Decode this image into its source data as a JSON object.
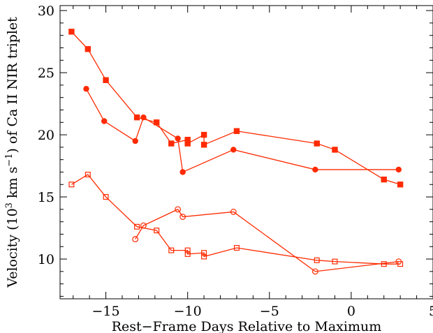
{
  "chart_data": {
    "type": "scatter",
    "xlabel": "Rest−Frame Days Relative to Maximum",
    "ylabel": {
      "prefix": "Velocity (10",
      "sup1": "3",
      "middle": " km s",
      "sup2": "−1",
      "suffix": ") of Ca II NIR triplet"
    },
    "xlim": [
      -17.8,
      5.0
    ],
    "ylim": [
      6.8,
      30.4
    ],
    "x_ticks": [
      -15,
      -10,
      -5,
      0,
      5
    ],
    "x_tick_labels": [
      "−15",
      "−10",
      "−5",
      "0",
      "5"
    ],
    "y_ticks": [
      10,
      15,
      20,
      25,
      30
    ],
    "y_tick_labels": [
      "10",
      "15",
      "20",
      "25",
      "30"
    ],
    "grid": false,
    "color": "#ff2a00",
    "series": [
      {
        "marker": "square",
        "filled": true,
        "points": [
          [
            -17.1,
            28.3
          ],
          [
            -16.1,
            26.9
          ],
          [
            -15.0,
            24.4
          ],
          [
            -13.1,
            21.4
          ],
          [
            -11.9,
            21.0
          ],
          [
            -11.0,
            19.3
          ],
          [
            -10.0,
            19.6
          ],
          [
            -10.0,
            19.3
          ],
          [
            -9.0,
            20.0
          ],
          [
            -9.0,
            19.2
          ],
          [
            -7.0,
            20.3
          ],
          [
            -2.1,
            19.3
          ],
          [
            -1.0,
            18.8
          ],
          [
            2.0,
            16.4
          ],
          [
            3.0,
            16.0
          ]
        ]
      },
      {
        "marker": "circle",
        "filled": true,
        "points": [
          [
            -16.2,
            23.7
          ],
          [
            -15.1,
            21.1
          ],
          [
            -13.2,
            19.5
          ],
          [
            -12.7,
            21.4
          ],
          [
            -10.6,
            19.7
          ],
          [
            -10.3,
            17.0
          ],
          [
            -7.2,
            18.8
          ],
          [
            -2.2,
            17.2
          ],
          [
            2.9,
            17.2
          ]
        ]
      },
      {
        "marker": "square",
        "filled": false,
        "points": [
          [
            -17.1,
            16.0
          ],
          [
            -16.1,
            16.8
          ],
          [
            -15.0,
            15.0
          ],
          [
            -13.1,
            12.6
          ],
          [
            -11.9,
            12.3
          ],
          [
            -11.0,
            10.7
          ],
          [
            -10.0,
            10.7
          ],
          [
            -10.0,
            10.4
          ],
          [
            -9.0,
            10.5
          ],
          [
            -9.0,
            10.2
          ],
          [
            -7.0,
            10.9
          ],
          [
            -2.1,
            9.9
          ],
          [
            -1.0,
            9.8
          ],
          [
            2.0,
            9.6
          ],
          [
            3.0,
            9.6
          ]
        ]
      },
      {
        "marker": "circle",
        "filled": false,
        "points": [
          [
            -13.2,
            11.6
          ],
          [
            -12.7,
            12.7
          ],
          [
            -10.6,
            14.0
          ],
          [
            -10.3,
            13.4
          ],
          [
            -7.2,
            13.8
          ],
          [
            -2.2,
            9.0
          ],
          [
            2.9,
            9.8
          ]
        ]
      }
    ]
  }
}
